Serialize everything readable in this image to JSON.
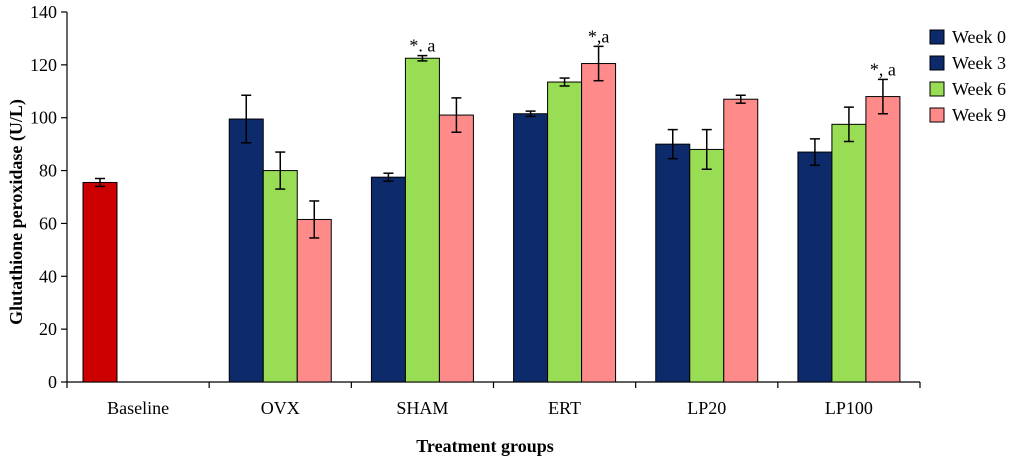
{
  "chart_data": {
    "type": "bar",
    "title": "",
    "xlabel": "Treatment groups",
    "ylabel": "Glutathione peroxidase (U/L)",
    "ylim": [
      0,
      140
    ],
    "yticks": [
      0,
      20,
      40,
      60,
      80,
      100,
      120,
      140
    ],
    "grid": false,
    "legend_position": "right",
    "legend": [
      "Week 0",
      "Week 3",
      "Week 6",
      "Week 9"
    ],
    "colors": {
      "baseline": "#cc0000",
      "week0": "#0d2a6b",
      "week3": "#0d2a6b",
      "week6": "#99dd55",
      "week9": "#ff8a8a",
      "stroke": "#000000"
    },
    "categories": [
      "Baseline",
      "OVX",
      "SHAM",
      "ERT",
      "LP20",
      "LP100"
    ],
    "groups": [
      {
        "name": "Baseline",
        "bars": [
          {
            "series": "Baseline",
            "value": 75.5,
            "error": 1.5
          }
        ]
      },
      {
        "name": "OVX",
        "bars": [
          {
            "series": "Week 3",
            "value": 99.5,
            "error": 9
          },
          {
            "series": "Week 6",
            "value": 80,
            "error": 7
          },
          {
            "series": "Week 9",
            "value": 61.5,
            "error": 7
          }
        ]
      },
      {
        "name": "SHAM",
        "bars": [
          {
            "series": "Week 3",
            "value": 77.5,
            "error": 1.5
          },
          {
            "series": "Week 6",
            "value": 122.5,
            "error": 1
          },
          {
            "series": "Week 9",
            "value": 101,
            "error": 6.5
          }
        ],
        "annotation": "*. a"
      },
      {
        "name": "ERT",
        "bars": [
          {
            "series": "Week 3",
            "value": 101.5,
            "error": 1
          },
          {
            "series": "Week 6",
            "value": 113.5,
            "error": 1.5
          },
          {
            "series": "Week 9",
            "value": 120.5,
            "error": 6.5
          }
        ],
        "annotation": "*,a"
      },
      {
        "name": "LP20",
        "bars": [
          {
            "series": "Week 3",
            "value": 90,
            "error": 5.5
          },
          {
            "series": "Week 6",
            "value": 88,
            "error": 7.5
          },
          {
            "series": "Week 9",
            "value": 107,
            "error": 1.5
          }
        ]
      },
      {
        "name": "LP100",
        "bars": [
          {
            "series": "Week 3",
            "value": 87,
            "error": 5
          },
          {
            "series": "Week 6",
            "value": 97.5,
            "error": 6.5
          },
          {
            "series": "Week 9",
            "value": 108,
            "error": 6.5
          }
        ],
        "annotation": "*, a"
      }
    ]
  }
}
